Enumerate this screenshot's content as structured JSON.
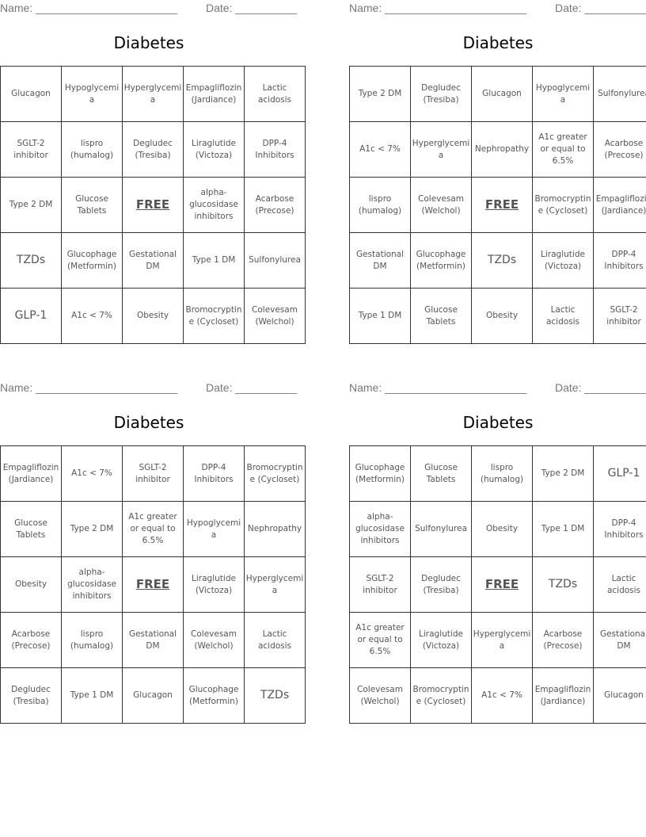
{
  "name_label": "Name: _______________________",
  "date_label": "Date: __________",
  "title": "Diabetes",
  "cards": [
    {
      "cells": [
        [
          "Glucagon",
          "Hypoglycemia",
          "Hyperglycemia",
          "Empagliflozin (Jardiance)",
          "Lactic acidosis"
        ],
        [
          "SGLT-2 inhibitor",
          "lispro (humalog)",
          "Degludec (Tresiba)",
          "Liraglutide (Victoza)",
          "DPP-4 Inhibitors"
        ],
        [
          "Type 2 DM",
          "Glucose Tablets",
          "FREE",
          "alpha-glucosidase inhibitors",
          "Acarbose (Precose)"
        ],
        [
          "TZDs",
          "Glucophage (Metformin)",
          "Gestational DM",
          "Type 1 DM",
          "Sulfonylurea"
        ],
        [
          "GLP-1",
          "A1c < 7%",
          "Obesity",
          "Bromocryptine (Cycloset)",
          "Colevesam (Welchol)"
        ]
      ]
    },
    {
      "cells": [
        [
          "Type 2 DM",
          "Degludec (Tresiba)",
          "Glucagon",
          "Hypoglycemia",
          "Sulfonylurea"
        ],
        [
          "A1c < 7%",
          "Hyperglycemia",
          "Nephropathy",
          "A1c greater or equal to 6.5%",
          "Acarbose (Precose)"
        ],
        [
          "lispro (humalog)",
          "Colevesam (Welchol)",
          "FREE",
          "Bromocryptine (Cycloset)",
          "Empagliflozin (Jardiance)"
        ],
        [
          "Gestational DM",
          "Glucophage (Metformin)",
          "TZDs",
          "Liraglutide (Victoza)",
          "DPP-4 Inhibitors"
        ],
        [
          "Type 1 DM",
          "Glucose Tablets",
          "Obesity",
          "Lactic acidosis",
          "SGLT-2 inhibitor"
        ]
      ]
    },
    {
      "cells": [
        [
          "Empagliflozin (Jardiance)",
          "A1c < 7%",
          "SGLT-2 inhibitor",
          "DPP-4 Inhibitors",
          "Bromocryptine (Cycloset)"
        ],
        [
          "Glucose Tablets",
          "Type 2 DM",
          "A1c greater or equal to 6.5%",
          "Hypoglycemia",
          "Nephropathy"
        ],
        [
          "Obesity",
          "alpha-glucosidase inhibitors",
          "FREE",
          "Liraglutide (Victoza)",
          "Hyperglycemia"
        ],
        [
          "Acarbose (Precose)",
          "lispro (humalog)",
          "Gestational DM",
          "Colevesam (Welchol)",
          "Lactic acidosis"
        ],
        [
          "Degludec (Tresiba)",
          "Type 1 DM",
          "Glucagon",
          "Glucophage (Metformin)",
          "TZDs"
        ]
      ]
    },
    {
      "cells": [
        [
          "Glucophage (Metformin)",
          "Glucose Tablets",
          "lispro (humalog)",
          "Type 2 DM",
          "GLP-1"
        ],
        [
          "alpha-glucosidase inhibitors",
          "Sulfonylurea",
          "Obesity",
          "Type 1 DM",
          "DPP-4 Inhibitors"
        ],
        [
          "SGLT-2 inhibitor",
          "Degludec (Tresiba)",
          "FREE",
          "TZDs",
          "Lactic acidosis"
        ],
        [
          "A1c greater or equal to 6.5%",
          "Liraglutide (Victoza)",
          "Hyperglycemia",
          "Acarbose (Precose)",
          "Gestational DM"
        ],
        [
          "Colevesam (Welchol)",
          "Bromocryptine (Cycloset)",
          "A1c < 7%",
          "Empagliflozin (Jardiance)",
          "Glucagon"
        ]
      ]
    }
  ]
}
